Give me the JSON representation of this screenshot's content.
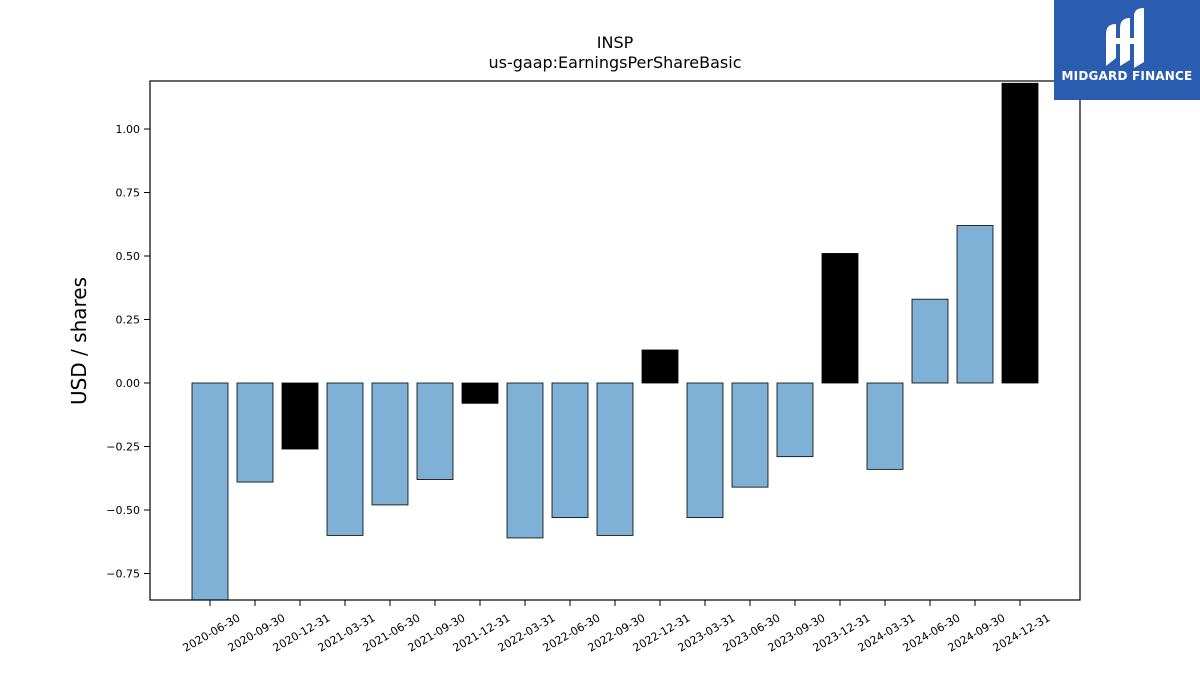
{
  "chart_data": {
    "type": "bar",
    "title": "INSP",
    "subtitle": "us-gaap:EarningsPerShareBasic",
    "xlabel": "",
    "ylabel": "USD / shares",
    "ylim": [
      -0.85,
      1.18
    ],
    "yticks": [
      "1.00",
      "0.75",
      "0.50",
      "0.25",
      "0.00",
      "−0.25",
      "−0.50",
      "−0.75"
    ],
    "ytick_values": [
      1.0,
      0.75,
      0.5,
      0.25,
      0.0,
      -0.25,
      -0.5,
      -0.75
    ],
    "categories": [
      "2020-06-30",
      "2020-09-30",
      "2020-12-31",
      "2021-03-31",
      "2021-06-30",
      "2021-09-30",
      "2021-12-31",
      "2022-03-31",
      "2022-06-30",
      "2022-09-30",
      "2022-12-31",
      "2023-03-31",
      "2023-06-30",
      "2023-09-30",
      "2023-12-31",
      "2024-03-31",
      "2024-06-30",
      "2024-09-30",
      "2024-12-31"
    ],
    "values": [
      -0.86,
      -0.39,
      -0.26,
      -0.6,
      -0.48,
      -0.38,
      -0.08,
      -0.61,
      -0.53,
      -0.6,
      0.13,
      -0.53,
      -0.41,
      -0.29,
      0.51,
      -0.34,
      0.33,
      0.62,
      1.18
    ],
    "highlight": [
      false,
      false,
      true,
      false,
      false,
      false,
      true,
      false,
      false,
      false,
      true,
      false,
      false,
      false,
      true,
      false,
      false,
      false,
      true
    ],
    "colors": {
      "normal": "#7fb0d5",
      "highlight": "#000000",
      "edge": "#000000"
    },
    "grid": false
  },
  "logo": {
    "text": "MIDGARD FINANCE",
    "color": "#2a5db0"
  }
}
